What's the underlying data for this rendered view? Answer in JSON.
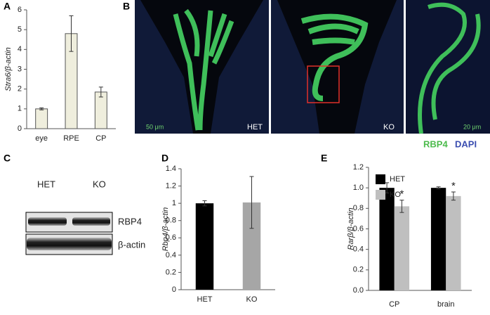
{
  "panel_labels": [
    "A",
    "B",
    "C",
    "D",
    "E"
  ],
  "images": {
    "left_label": "HET",
    "middle_label": "KO",
    "left_scale": "50 μm",
    "right_scale": "20 μm",
    "stain_green": "RBP4",
    "stain_blue": "DAPI"
  },
  "blot": {
    "lanes": [
      "HET",
      "KO"
    ],
    "bands": [
      "RBP4",
      "β-actin"
    ]
  },
  "chart_data": [
    {
      "type": "bar",
      "ylabel": "Stra6/β-actin",
      "categories": [
        "eye",
        "RPE",
        "CP"
      ],
      "values": [
        1.0,
        4.8,
        1.85
      ],
      "errors": [
        0.05,
        0.9,
        0.25
      ],
      "color": "#efeedd",
      "ylim": [
        0,
        6
      ],
      "yticks": [
        0,
        1,
        2,
        3,
        4,
        5,
        6
      ]
    },
    {
      "type": "bar",
      "ylabel": "Rbp4/β-actin",
      "categories": [
        "HET",
        "KO"
      ],
      "values": [
        1.0,
        1.01
      ],
      "errors": [
        0.03,
        0.3
      ],
      "colors": [
        "#000000",
        "#a6a6a6"
      ],
      "ylim": [
        0,
        1.4
      ],
      "yticks": [
        0,
        0.2,
        0.4,
        0.6,
        0.8,
        1,
        1.2,
        1.4
      ]
    },
    {
      "type": "bar",
      "ylabel": "Rarβ/β-actin",
      "categories": [
        "CP",
        "brain"
      ],
      "series": [
        {
          "name": "HET",
          "color": "#000000",
          "values": [
            1.0,
            1.0
          ],
          "errors": [
            0.05,
            0.01
          ]
        },
        {
          "name": "KO",
          "color": "#bfbfbf",
          "values": [
            0.82,
            0.92
          ],
          "errors": [
            0.06,
            0.04
          ],
          "markers": [
            "*",
            "*"
          ]
        }
      ],
      "ylim": [
        0,
        1.2
      ],
      "yticks": [
        {
          "value": 0,
          "label": "0.0"
        },
        {
          "value": 0.2,
          "label": "0.2"
        },
        {
          "value": 0.4,
          "label": "0.4"
        },
        {
          "value": 0.6,
          "label": "0.6"
        },
        {
          "value": 0.8,
          "label": "0.8"
        },
        {
          "value": 1,
          "label": "1.0"
        },
        {
          "value": 1.2,
          "label": "1.2"
        }
      ]
    }
  ]
}
